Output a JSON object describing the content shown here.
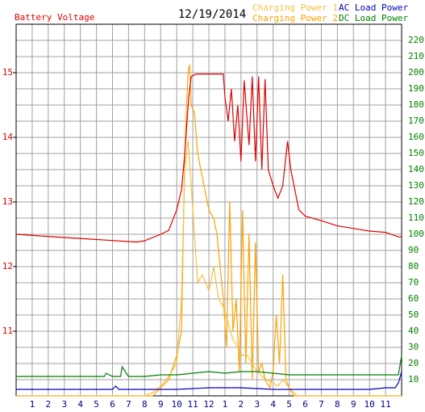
{
  "chart_data": {
    "type": "line",
    "title": "12/19/2014",
    "xlim": [
      0,
      24
    ],
    "xticks": [
      1,
      2,
      3,
      4,
      5,
      6,
      7,
      8,
      9,
      10,
      11,
      12,
      {
        "value": 13,
        "label": "1"
      },
      {
        "value": 14,
        "label": "2"
      },
      {
        "value": 15,
        "label": "3"
      },
      {
        "value": 16,
        "label": "4"
      },
      {
        "value": 17,
        "label": "5"
      },
      {
        "value": 18,
        "label": "6"
      },
      {
        "value": 19,
        "label": "7"
      },
      {
        "value": 20,
        "label": "8"
      },
      {
        "value": 21,
        "label": "9"
      },
      {
        "value": 22,
        "label": "10"
      },
      {
        "value": 23,
        "label": "11"
      }
    ],
    "ylim": [
      10,
      15.75
    ],
    "yticks": [
      11,
      12,
      13,
      14,
      15
    ],
    "y2lim": [
      0,
      230
    ],
    "y2ticks": [
      10,
      20,
      30,
      40,
      50,
      60,
      70,
      80,
      90,
      100,
      110,
      120,
      130,
      140,
      150,
      160,
      170,
      180,
      190,
      200,
      210,
      220
    ],
    "grid": true,
    "series": [
      {
        "name": "Battery Voltage",
        "color": "#e00000",
        "axis": "y",
        "x": [
          0,
          3,
          7.5,
          8,
          9,
          9.5,
          10,
          10.3,
          10.5,
          10.75,
          10.9,
          11.2,
          12,
          12.9,
          13,
          13.2,
          13.4,
          13.6,
          13.8,
          14,
          14.2,
          14.5,
          14.7,
          14.9,
          15.1,
          15.3,
          15.5,
          15.7,
          16,
          16.3,
          16.6,
          16.9,
          17.1,
          17.3,
          17.6,
          18,
          19,
          20,
          21,
          22,
          23,
          23.8,
          24
        ],
        "values": [
          12.5,
          12.45,
          12.38,
          12.4,
          12.5,
          12.56,
          12.88,
          13.19,
          13.75,
          14.63,
          14.94,
          14.98,
          14.98,
          14.98,
          14.63,
          14.25,
          14.75,
          13.94,
          14.5,
          13.63,
          14.88,
          13.88,
          14.94,
          13.63,
          14.94,
          13.5,
          14.9,
          13.5,
          13.25,
          13.06,
          13.25,
          13.94,
          13.5,
          13.25,
          12.88,
          12.78,
          12.71,
          12.63,
          12.59,
          12.55,
          12.53,
          12.46,
          12.46
        ]
      },
      {
        "name": "Charging Power 1",
        "color": "#f5c040",
        "axis": "y2",
        "x": [
          0,
          8,
          8.5,
          9,
          9.5,
          10,
          10.3,
          10.5,
          10.7,
          10.9,
          11.1,
          11.3,
          11.6,
          12,
          12.3,
          12.6,
          12.9,
          13.2,
          13.5,
          13.8,
          14.1,
          14.4,
          14.7,
          15,
          15.3,
          15.6,
          16,
          16.3,
          16.6,
          17,
          17.5,
          24
        ],
        "values": [
          0,
          0,
          2,
          6,
          12,
          20,
          60,
          140,
          158,
          130,
          100,
          70,
          75,
          65,
          80,
          60,
          55,
          45,
          35,
          30,
          25,
          25,
          20,
          15,
          12,
          10,
          8,
          6,
          10,
          5,
          0,
          0
        ]
      },
      {
        "name": "Charging Power 2",
        "color": "#ffa000",
        "axis": "y2",
        "x": [
          0,
          8.5,
          9,
          9.5,
          10,
          10.3,
          10.5,
          10.7,
          10.8,
          10.9,
          11.1,
          11.3,
          11.5,
          11.8,
          12,
          12.3,
          12.5,
          12.7,
          12.9,
          13.1,
          13.3,
          13.5,
          13.7,
          13.9,
          14.1,
          14.3,
          14.5,
          14.7,
          14.9,
          15.1,
          15.3,
          15.5,
          15.8,
          16,
          16.2,
          16.4,
          16.6,
          16.8,
          17,
          17.3,
          24
        ],
        "values": [
          0,
          0,
          5,
          10,
          25,
          40,
          150,
          200,
          205,
          180,
          175,
          150,
          140,
          125,
          115,
          110,
          100,
          80,
          60,
          30,
          120,
          40,
          60,
          15,
          115,
          20,
          100,
          10,
          95,
          15,
          20,
          10,
          5,
          15,
          50,
          20,
          75,
          10,
          5,
          0,
          0
        ]
      },
      {
        "name": "AC Load Power",
        "color": "#0000c0",
        "axis": "y2",
        "x": [
          0,
          2,
          4,
          6,
          6.2,
          6.4,
          8,
          10,
          12,
          14,
          16,
          18,
          20,
          22,
          23,
          23.6,
          23.8,
          24
        ],
        "values": [
          4,
          4,
          4,
          4,
          6,
          4,
          4,
          4,
          5,
          5,
          4,
          4,
          4,
          4,
          5,
          5,
          8,
          15
        ]
      },
      {
        "name": "DC Load Power",
        "color": "#008000",
        "axis": "y2",
        "x": [
          0,
          2,
          4,
          5.5,
          5.6,
          6,
          6.5,
          6.6,
          7,
          8,
          9,
          10,
          11,
          12,
          13,
          14,
          15,
          16,
          17,
          18,
          19,
          20,
          21,
          22,
          23,
          23.8,
          24
        ],
        "values": [
          12,
          12,
          12,
          12,
          14,
          12,
          12,
          18,
          12,
          12,
          13,
          13,
          14,
          15,
          14,
          15,
          15,
          14,
          13,
          13,
          13,
          13,
          13,
          13,
          13,
          13,
          25
        ]
      }
    ]
  }
}
